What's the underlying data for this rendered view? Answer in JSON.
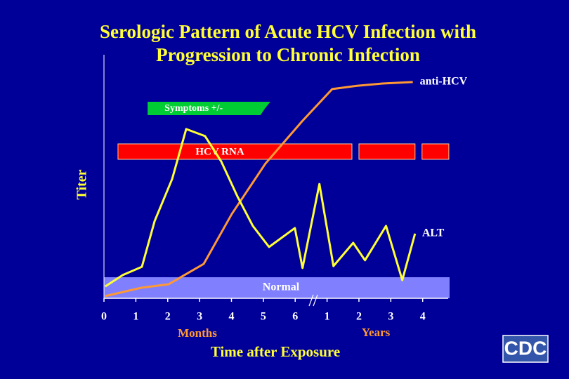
{
  "chart_data": {
    "type": "line",
    "title": [
      "Serologic Pattern of Acute HCV Infection with",
      "Progression to Chronic Infection"
    ],
    "y_label": "Titer",
    "x_label": "Time after Exposure",
    "x_sublabels": {
      "months": "Months",
      "years": "Years"
    },
    "xlim": [
      0,
      10.8
    ],
    "ylim": [
      0,
      100
    ],
    "xticks": [
      0,
      1,
      2,
      3,
      4,
      5,
      6,
      {
        "value": 7,
        "label": "1"
      },
      {
        "value": 8,
        "label": "2"
      },
      {
        "value": 9,
        "label": "3"
      },
      {
        "value": 10,
        "label": "4"
      }
    ],
    "series": [
      {
        "name": "anti-HCV",
        "color": "#ff9933",
        "x": [
          0.04,
          1.15,
          2.03,
          3.13,
          4.01,
          5.07,
          6.21,
          7.16,
          7.97,
          8.74,
          9.69
        ],
        "values": [
          0.9,
          4.3,
          5.8,
          14.2,
          34.8,
          55.7,
          73.0,
          86.4,
          87.8,
          88.7,
          89.3
        ]
      },
      {
        "name": "ALT",
        "color": "#ffff33",
        "x": [
          0.04,
          0.59,
          1.19,
          1.59,
          2.14,
          2.58,
          3.17,
          3.68,
          4.19,
          4.67,
          5.18,
          5.99,
          6.23,
          6.76,
          7.2,
          7.82,
          8.19,
          8.85,
          9.36,
          9.76
        ],
        "values": [
          4.9,
          9.6,
          13.0,
          31.9,
          49.3,
          69.9,
          67.0,
          56.5,
          42.0,
          29.9,
          21.2,
          29.0,
          12.5,
          47.2,
          13.3,
          22.9,
          15.7,
          29.9,
          7.5,
          26.7
        ]
      }
    ],
    "normal_band": {
      "label": "Normal",
      "color": "#8080ff",
      "ylim": [
        0,
        8.7
      ]
    },
    "hcv_rna": {
      "label": "HCV RNA",
      "color": "#ff0000",
      "ranges": [
        [
          0.44,
          7.78
        ],
        [
          8.0,
          9.76
        ],
        [
          9.98,
          10.82
        ]
      ]
    },
    "symptoms": {
      "label": "Symptoms +/-",
      "color": "#00cc33",
      "range": [
        1.37,
        5.22
      ]
    },
    "logo": "CDC"
  }
}
